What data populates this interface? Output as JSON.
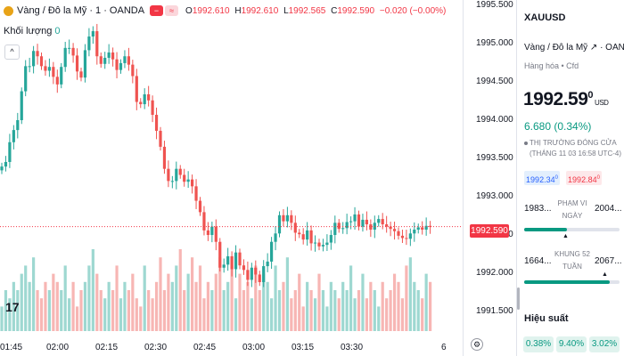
{
  "legend": {
    "symbol_text": "Vàng / Đô la Mỹ · 1 · OANDA",
    "btn1": "−",
    "btn2": "≈",
    "o_key": "O",
    "o_val": "1992.610",
    "h_key": "H",
    "h_val": "1992.610",
    "l_key": "L",
    "l_val": "1992.565",
    "c_key": "C",
    "c_val": "1992.590",
    "change": "−0.020 (−0.00%)"
  },
  "volume": {
    "label": "Khối lượng",
    "value": "0"
  },
  "collapse_symbol": "^",
  "logo_text": "17",
  "price_axis": {
    "ticks": [
      "1995.500",
      "1995.000",
      "1994.500",
      "1994.000",
      "1993.500",
      "1993.000",
      "1992.500",
      "1992.000",
      "1991.500"
    ],
    "current": "1992.590"
  },
  "time_axis": {
    "ticks": [
      "01:45",
      "02:00",
      "02:15",
      "02:30",
      "02:45",
      "03:00",
      "03:15",
      "03:30",
      "6"
    ]
  },
  "settings_symbol": "⚙",
  "colors": {
    "up": "#26a69a",
    "down": "#ef5350",
    "up_vol": "#9ed8d1",
    "down_vol": "#f7b6b4",
    "price_line": "#f23645"
  },
  "chart_data": {
    "type": "candlestick",
    "series": [
      {
        "name": "price",
        "values": [
          1993.38,
          1993.44,
          1993.7,
          1993.86,
          1993.99,
          1994.37,
          1994.7,
          1994.7,
          1994.9,
          1994.83,
          1994.7,
          1994.64,
          1994.69,
          1994.56,
          1994.46,
          1994.69,
          1994.94,
          1994.94,
          1994.84,
          1994.63,
          1994.55,
          1994.91,
          1995.09,
          1995.16,
          1994.83,
          1994.73,
          1994.81,
          1994.88,
          1994.79,
          1994.65,
          1994.74,
          1994.83,
          1994.72,
          1994.57,
          1994.23,
          1994.2,
          1994.33,
          1994.25,
          1994.06,
          1993.85,
          1993.64,
          1993.35,
          1993.19,
          1993.19,
          1993.35,
          1993.27,
          1993.18,
          1993.21,
          1993.12,
          1992.93,
          1992.78,
          1992.54,
          1992.48,
          1992.59,
          1992.39,
          1992.05,
          1992.09,
          1992.2,
          1992.03,
          1992.25,
          1992.08,
          1992.02,
          1991.89,
          1992.05,
          1991.96,
          1991.86,
          1992.07,
          1992.13,
          1992.39,
          1992.5,
          1992.74,
          1992.66,
          1992.74,
          1992.64,
          1992.51,
          1992.49,
          1992.42,
          1992.54,
          1992.37,
          1992.38,
          1992.33,
          1992.35,
          1992.38,
          1992.48,
          1992.64,
          1992.56,
          1992.57,
          1992.65,
          1992.66,
          1992.75,
          1992.59,
          1992.68,
          1992.62,
          1992.55,
          1992.64,
          1992.69,
          1992.62,
          1992.59,
          1992.56,
          1992.53,
          1992.47,
          1992.44,
          1992.43,
          1992.5,
          1992.55,
          1992.58,
          1992.55,
          1992.6,
          1992.59
        ]
      },
      {
        "name": "volume",
        "values": [
          3,
          5,
          4,
          6,
          5,
          7,
          8,
          6,
          9,
          5,
          4,
          6,
          5,
          7,
          6,
          5,
          8,
          4,
          6,
          3,
          5,
          6,
          8,
          10,
          7,
          5,
          4,
          6,
          5,
          8,
          4,
          6,
          5,
          7,
          4,
          3,
          8,
          5,
          4,
          6,
          9,
          5,
          7,
          6,
          8,
          10,
          5,
          7,
          9,
          6,
          8,
          4,
          6,
          5,
          7,
          9,
          5,
          6,
          8,
          4,
          7,
          5,
          6,
          4,
          8,
          5,
          7,
          6,
          4,
          8,
          5,
          6,
          9,
          4,
          5,
          7,
          3,
          6,
          5,
          4,
          7,
          5,
          3,
          6,
          5,
          4,
          6,
          5,
          8,
          4,
          5,
          7,
          4,
          6,
          5,
          3,
          6,
          4,
          5,
          7,
          6,
          4,
          8,
          9,
          6,
          5,
          4,
          7,
          6
        ]
      }
    ],
    "ylim": [
      1991.38,
      1995.5
    ],
    "current_price": 1992.59
  },
  "panel": {
    "symbol": "XAUUSD",
    "full_name": "Vàng / Đô la Mỹ ↗ · OANDA",
    "category": "Hàng hóa • Cfd",
    "price_main": "1992.59",
    "price_sup": "0",
    "currency": "USD",
    "change": "6.680 (0.34%)",
    "status_line1": "THỊ TRƯỜNG ĐÓNG CỬA",
    "status_line2": "(THÁNG 11 03 16:58 UTC-4)",
    "bid": "1992.34",
    "bid_sup": "0",
    "ask": "1992.84",
    "ask_sup": "0",
    "day_low": "1983...",
    "day_high": "2004...",
    "day_caption": "PHẠM VI NGÀY",
    "day_progress": 0.45,
    "year_low": "1664...",
    "year_high": "2067...",
    "year_caption": "KHUNG 52 TUẦN",
    "year_progress": 0.9,
    "marker": "▲",
    "perf_title": "Hiệu suất",
    "perf": [
      "0.38%",
      "9.40%",
      "3.02%"
    ]
  }
}
